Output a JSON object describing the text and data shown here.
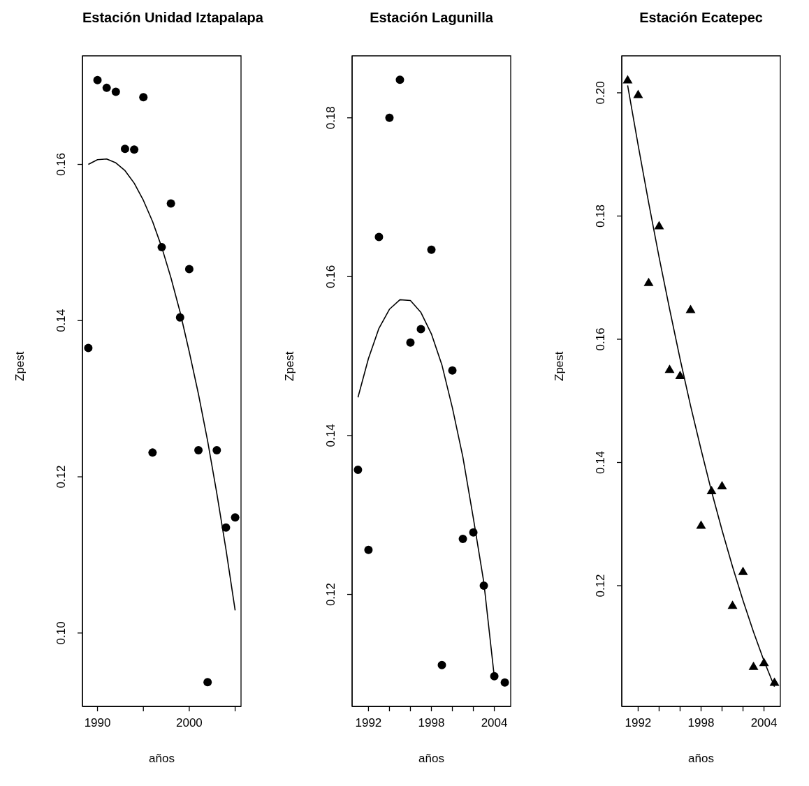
{
  "chart_data": [
    {
      "type": "scatter",
      "title": "Estación Unidad Iztapalapa",
      "xlabel": "años",
      "ylabel": "Zpest",
      "xlim": [
        1988.36,
        2005.64
      ],
      "ylim": [
        0.0906,
        0.1739
      ],
      "xticks": [
        1990,
        {
          "value": 1995,
          "label": null
        },
        2000,
        {
          "value": 2005,
          "label": null
        }
      ],
      "yticks": [
        {
          "value": 0.1,
          "label": "0.10"
        },
        0.12,
        0.14,
        0.16
      ],
      "series": [
        {
          "marker": "circle",
          "color": "#000000",
          "x": [
            1989,
            1990,
            1991,
            1992,
            1993,
            1994,
            1995,
            1996,
            1997,
            1998,
            1999,
            2000,
            2001,
            2002,
            2003,
            2004,
            2005
          ],
          "values": [
            0.1365,
            0.1708,
            0.1698,
            0.1693,
            0.162,
            0.1619,
            0.1686,
            0.1231,
            0.1494,
            0.155,
            0.1404,
            0.1466,
            0.1234,
            0.0937,
            0.1234,
            0.1135,
            0.1148
          ]
        },
        {
          "type": "line",
          "color": "#000000",
          "x": [
            1989,
            1990,
            1991,
            1992,
            1993,
            1994,
            1995,
            1996,
            1997,
            1998,
            1999,
            2000,
            2001,
            2002,
            2003,
            2004,
            2005
          ],
          "values": [
            0.16,
            0.1606,
            0.1607,
            0.1602,
            0.1592,
            0.1576,
            0.1554,
            0.1527,
            0.1494,
            0.1455,
            0.1411,
            0.136,
            0.1306,
            0.1246,
            0.1179,
            0.1107,
            0.1029
          ]
        }
      ]
    },
    {
      "type": "scatter",
      "title": "Estación Lagunilla",
      "xlabel": "años",
      "ylabel": "Zpest",
      "xlim": [
        1990.44,
        2005.56
      ],
      "ylim": [
        0.1059,
        0.1878
      ],
      "xticks": [
        1992,
        {
          "value": 1994,
          "label": null
        },
        {
          "value": 1996,
          "label": null
        },
        1998,
        {
          "value": 2000,
          "label": null
        },
        {
          "value": 2002,
          "label": null
        },
        2004
      ],
      "yticks": [
        0.12,
        0.14,
        0.16,
        0.18
      ],
      "series": [
        {
          "marker": "circle",
          "color": "#000000",
          "x": [
            1991,
            1992,
            1993,
            1994,
            1995,
            1996,
            1997,
            1998,
            1999,
            2000,
            2001,
            2002,
            2003,
            2004,
            2005
          ],
          "values": [
            0.1357,
            0.1256,
            0.165,
            0.18,
            0.1848,
            0.1517,
            0.1534,
            0.1634,
            0.1111,
            0.1482,
            0.127,
            0.1278,
            0.1211,
            0.1097,
            0.1089
          ]
        },
        {
          "type": "line",
          "color": "#000000",
          "x": [
            1991,
            1992,
            1993,
            1994,
            1995,
            1996,
            1997,
            1998,
            1999,
            2000,
            2001,
            2002,
            2003,
            2004
          ],
          "values": [
            0.1448,
            0.1497,
            0.1535,
            0.1559,
            0.1571,
            0.157,
            0.1555,
            0.1528,
            0.1489,
            0.1435,
            0.1373,
            0.1296,
            0.1215,
            0.1096
          ]
        }
      ]
    },
    {
      "type": "scatter",
      "title": "Estación Ecatepec",
      "xlabel": "años",
      "ylabel": "Zpest",
      "xlim": [
        1990.44,
        2005.56
      ],
      "ylim": [
        0.1004,
        0.206
      ],
      "xticks": [
        1992,
        {
          "value": 1994,
          "label": null
        },
        {
          "value": 1996,
          "label": null
        },
        1998,
        {
          "value": 2000,
          "label": null
        },
        {
          "value": 2002,
          "label": null
        },
        2004
      ],
      "yticks": [
        0.12,
        0.14,
        0.16,
        0.18,
        {
          "value": 0.2,
          "label": "0.20"
        }
      ],
      "series": [
        {
          "marker": "triangle",
          "color": "#000000",
          "x": [
            1991,
            1992,
            1993,
            1994,
            1995,
            1996,
            1997,
            1998,
            1999,
            2000,
            2001,
            2002,
            2003,
            2004,
            2005
          ],
          "values": [
            0.2021,
            0.1997,
            0.1692,
            0.1784,
            0.1551,
            0.1541,
            0.1648,
            0.1298,
            0.1354,
            0.1362,
            0.1168,
            0.1223,
            0.1069,
            0.1075,
            0.1043
          ]
        },
        {
          "type": "line",
          "color": "#000000",
          "x": [
            1991,
            1992,
            1993,
            1994,
            1995,
            1996,
            1997,
            1998,
            1999,
            2000,
            2001,
            2002,
            2003,
            2004,
            2005
          ],
          "values": [
            0.2012,
            0.1915,
            0.1822,
            0.1733,
            0.1649,
            0.1568,
            0.1492,
            0.1421,
            0.1353,
            0.129,
            0.1231,
            0.1176,
            0.1125,
            0.1078,
            0.1036
          ]
        }
      ]
    }
  ]
}
